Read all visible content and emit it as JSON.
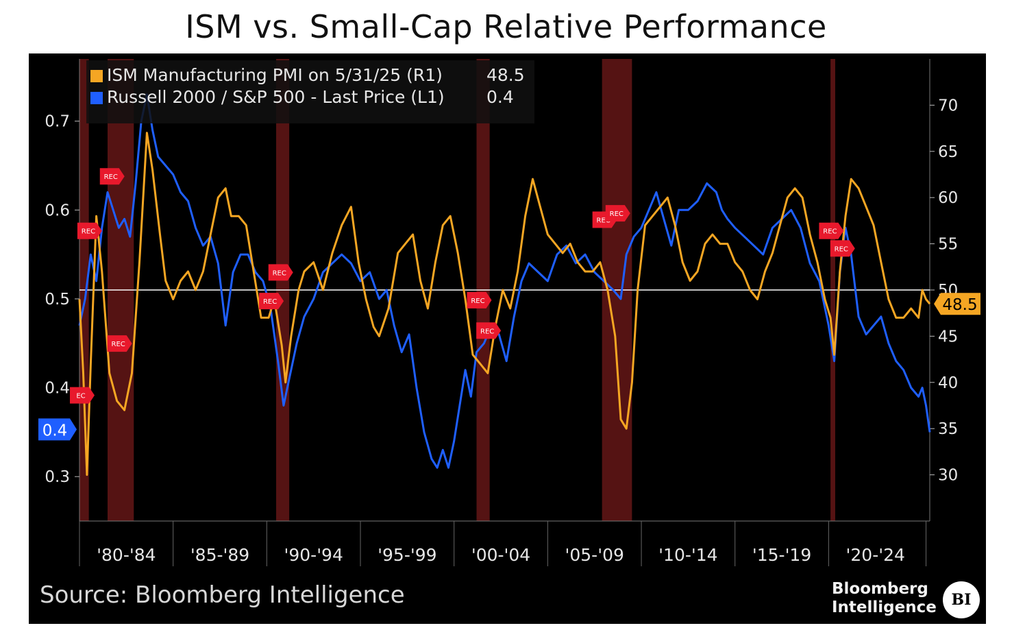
{
  "title": "ISM vs. Small-Cap Relative Performance",
  "source": "Source: Bloomberg Intelligence",
  "brand": {
    "line1": "Bloomberg",
    "line2": "Intelligence",
    "logo": "BI"
  },
  "colors": {
    "ism": "#f5a623",
    "russell": "#1f5fff",
    "recession": "#5a1414",
    "rec_flag": "#e8192c",
    "background": "#000000"
  },
  "chart_data": {
    "type": "line",
    "title": "ISM vs. Small-Cap Relative Performance",
    "legend_placement": "top-left",
    "x_range": [
      1980.0,
      2025.4
    ],
    "x_tick_labels": [
      {
        "label": "'80-'84",
        "start": 1980,
        "end": 1985
      },
      {
        "label": "'85-'89",
        "start": 1985,
        "end": 1990
      },
      {
        "label": "'90-'94",
        "start": 1990,
        "end": 1995
      },
      {
        "label": "'95-'99",
        "start": 1995,
        "end": 2000
      },
      {
        "label": "'00-'04",
        "start": 2000,
        "end": 2005
      },
      {
        "label": "'05-'09",
        "start": 2005,
        "end": 2010
      },
      {
        "label": "'10-'14",
        "start": 2010,
        "end": 2015
      },
      {
        "label": "'15-'19",
        "start": 2015,
        "end": 2020
      },
      {
        "label": "'20-'24",
        "start": 2020,
        "end": 2025
      }
    ],
    "left_axis": {
      "ylim": [
        0.25,
        0.77
      ],
      "ticks": [
        0.3,
        0.4,
        0.5,
        0.6,
        0.7
      ]
    },
    "right_axis": {
      "ylim": [
        25,
        75
      ],
      "ticks": [
        30,
        35,
        40,
        45,
        50,
        55,
        60,
        65,
        70
      ]
    },
    "reference_line": {
      "axis": "right",
      "value": 50
    },
    "recessions": [
      {
        "start": 1980.0,
        "end": 1980.5
      },
      {
        "start": 1981.5,
        "end": 1982.9
      },
      {
        "start": 1990.5,
        "end": 1991.2
      },
      {
        "start": 2001.2,
        "end": 2001.9
      },
      {
        "start": 2007.9,
        "end": 2009.5
      },
      {
        "start": 2020.1,
        "end": 2020.35
      }
    ],
    "rec_flags": [
      {
        "x": 1980.0,
        "y_right": 38.6,
        "label": "EC"
      },
      {
        "x": 1980.4,
        "y_right": 56.4,
        "label": "REC"
      },
      {
        "x": 1981.6,
        "y_right": 62.3,
        "label": "REC"
      },
      {
        "x": 1982.0,
        "y_right": 44.2,
        "label": "REC"
      },
      {
        "x": 1990.6,
        "y_right": 51.9,
        "label": "REC"
      },
      {
        "x": 1990.1,
        "y_right": 48.8,
        "label": "REC"
      },
      {
        "x": 2001.2,
        "y_right": 48.9,
        "label": "REC"
      },
      {
        "x": 2001.7,
        "y_right": 45.6,
        "label": "REC"
      },
      {
        "x": 2007.9,
        "y_right": 57.6,
        "label": "REC"
      },
      {
        "x": 2008.6,
        "y_right": 58.3,
        "label": "REC"
      },
      {
        "x": 2020.0,
        "y_right": 56.4,
        "label": "REC"
      },
      {
        "x": 2020.6,
        "y_right": 54.5,
        "label": "REC"
      }
    ],
    "series": [
      {
        "name": "ISM Manufacturing PMI on 5/31/25 (R1)",
        "last_value": "48.5",
        "axis": "right",
        "x": [
          1980.0,
          1980.2,
          1980.4,
          1980.6,
          1980.9,
          1981.2,
          1981.6,
          1982.0,
          1982.4,
          1982.8,
          1983.2,
          1983.6,
          1983.9,
          1984.3,
          1984.6,
          1985.0,
          1985.4,
          1985.8,
          1986.2,
          1986.6,
          1987.0,
          1987.4,
          1987.8,
          1988.1,
          1988.5,
          1988.9,
          1989.3,
          1989.7,
          1990.1,
          1990.4,
          1990.8,
          1991.0,
          1991.3,
          1991.7,
          1992.0,
          1992.5,
          1993.0,
          1993.5,
          1994.0,
          1994.5,
          1994.9,
          1995.3,
          1995.7,
          1996.0,
          1996.5,
          1997.0,
          1997.4,
          1997.8,
          1998.2,
          1998.6,
          1999.0,
          1999.4,
          1999.8,
          2000.2,
          2000.6,
          2001.0,
          2001.4,
          2001.8,
          2002.2,
          2002.6,
          2003.0,
          2003.4,
          2003.8,
          2004.2,
          2004.6,
          2005.0,
          2005.4,
          2005.8,
          2006.2,
          2006.6,
          2007.0,
          2007.4,
          2007.8,
          2008.2,
          2008.6,
          2008.9,
          2009.2,
          2009.5,
          2009.8,
          2010.2,
          2010.6,
          2011.0,
          2011.4,
          2011.8,
          2012.2,
          2012.6,
          2013.0,
          2013.4,
          2013.8,
          2014.2,
          2014.6,
          2015.0,
          2015.4,
          2015.8,
          2016.2,
          2016.6,
          2017.0,
          2017.4,
          2017.8,
          2018.2,
          2018.6,
          2019.0,
          2019.4,
          2019.8,
          2020.1,
          2020.3,
          2020.6,
          2020.9,
          2021.2,
          2021.6,
          2022.0,
          2022.4,
          2022.8,
          2023.2,
          2023.6,
          2024.0,
          2024.4,
          2024.8,
          2025.0,
          2025.2,
          2025.4
        ],
        "values": [
          49,
          41,
          30,
          42,
          58,
          52,
          41,
          38,
          37,
          41,
          53,
          67,
          63,
          56,
          51,
          49,
          51,
          52,
          50,
          52,
          56,
          60,
          61,
          58,
          58,
          57,
          52,
          47,
          47,
          49,
          44,
          40,
          45,
          50,
          52,
          53,
          50,
          54,
          57,
          59,
          53,
          49,
          46,
          45,
          48,
          54,
          55,
          56,
          51,
          48,
          53,
          57,
          58,
          54,
          49,
          43,
          42,
          41,
          46,
          50,
          48,
          52,
          58,
          62,
          59,
          56,
          55,
          54,
          55,
          53,
          52,
          52,
          53,
          50,
          45,
          36,
          35,
          40,
          50,
          57,
          58,
          59,
          60,
          57,
          53,
          51,
          52,
          55,
          56,
          55,
          55,
          53,
          52,
          50,
          49,
          52,
          54,
          57,
          60,
          61,
          60,
          56,
          53,
          49,
          47,
          43,
          52,
          58,
          62,
          61,
          59,
          57,
          53,
          49,
          47,
          47,
          48,
          47,
          50,
          49,
          48.5
        ]
      },
      {
        "name": "Russell 2000 / S&P 500 - Last Price (L1)",
        "last_value": "0.4",
        "axis": "left",
        "x": [
          1980.0,
          1980.3,
          1980.6,
          1980.9,
          1981.2,
          1981.5,
          1981.8,
          1982.1,
          1982.4,
          1982.7,
          1983.0,
          1983.3,
          1983.6,
          1983.9,
          1984.2,
          1984.6,
          1985.0,
          1985.4,
          1985.8,
          1986.2,
          1986.6,
          1987.0,
          1987.4,
          1987.8,
          1988.2,
          1988.6,
          1989.0,
          1989.4,
          1989.8,
          1990.2,
          1990.6,
          1990.9,
          1991.2,
          1991.6,
          1992.0,
          1992.5,
          1993.0,
          1993.5,
          1994.0,
          1994.5,
          1995.0,
          1995.5,
          1996.0,
          1996.4,
          1996.8,
          1997.2,
          1997.6,
          1998.0,
          1998.4,
          1998.8,
          1999.1,
          1999.4,
          1999.7,
          2000.0,
          2000.3,
          2000.6,
          2000.9,
          2001.2,
          2001.6,
          2002.0,
          2002.4,
          2002.8,
          2003.2,
          2003.6,
          2004.0,
          2004.5,
          2005.0,
          2005.5,
          2006.0,
          2006.5,
          2007.0,
          2007.5,
          2008.0,
          2008.5,
          2008.9,
          2009.2,
          2009.6,
          2010.0,
          2010.4,
          2010.8,
          2011.2,
          2011.6,
          2012.0,
          2012.5,
          2013.0,
          2013.5,
          2014.0,
          2014.3,
          2014.6,
          2015.0,
          2015.5,
          2016.0,
          2016.5,
          2017.0,
          2017.5,
          2018.0,
          2018.5,
          2019.0,
          2019.5,
          2020.0,
          2020.3,
          2020.6,
          2020.9,
          2021.2,
          2021.6,
          2022.0,
          2022.4,
          2022.8,
          2023.2,
          2023.6,
          2024.0,
          2024.4,
          2024.8,
          2025.0,
          2025.2,
          2025.4
        ],
        "values": [
          0.47,
          0.5,
          0.55,
          0.52,
          0.58,
          0.62,
          0.6,
          0.58,
          0.59,
          0.57,
          0.63,
          0.7,
          0.73,
          0.69,
          0.66,
          0.65,
          0.64,
          0.62,
          0.61,
          0.58,
          0.56,
          0.57,
          0.54,
          0.47,
          0.53,
          0.55,
          0.55,
          0.53,
          0.52,
          0.49,
          0.43,
          0.38,
          0.41,
          0.45,
          0.48,
          0.5,
          0.53,
          0.54,
          0.55,
          0.54,
          0.52,
          0.53,
          0.5,
          0.51,
          0.47,
          0.44,
          0.46,
          0.4,
          0.35,
          0.32,
          0.31,
          0.33,
          0.31,
          0.34,
          0.38,
          0.42,
          0.39,
          0.44,
          0.45,
          0.47,
          0.46,
          0.43,
          0.48,
          0.52,
          0.54,
          0.53,
          0.52,
          0.55,
          0.56,
          0.54,
          0.55,
          0.53,
          0.52,
          0.51,
          0.5,
          0.55,
          0.57,
          0.58,
          0.6,
          0.62,
          0.59,
          0.56,
          0.6,
          0.6,
          0.61,
          0.63,
          0.62,
          0.6,
          0.59,
          0.58,
          0.57,
          0.56,
          0.55,
          0.58,
          0.59,
          0.6,
          0.58,
          0.54,
          0.52,
          0.47,
          0.43,
          0.53,
          0.58,
          0.55,
          0.48,
          0.46,
          0.47,
          0.48,
          0.45,
          0.43,
          0.42,
          0.4,
          0.39,
          0.4,
          0.38,
          0.35
        ]
      }
    ]
  }
}
